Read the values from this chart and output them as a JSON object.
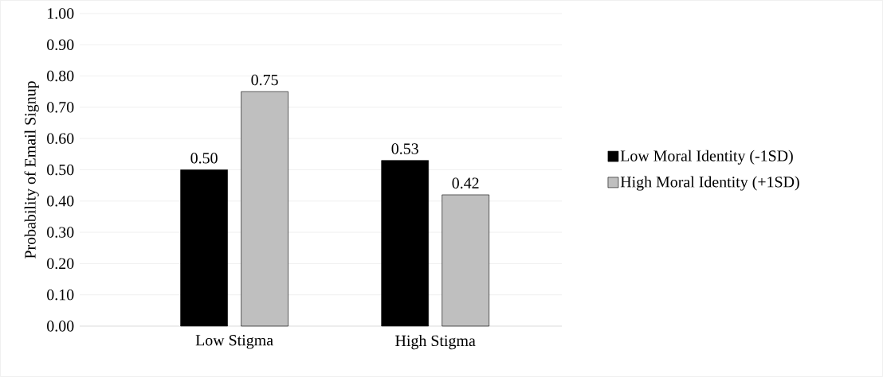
{
  "chart_data": {
    "type": "bar",
    "ylabel": "Probability of Email Signup",
    "categories": [
      "Low Stigma",
      "High Stigma"
    ],
    "series": [
      {
        "name": "Low Moral Identity (-1SD)",
        "color": "#000000",
        "values": [
          0.5,
          0.53
        ],
        "value_labels": [
          "0.50",
          "0.53"
        ]
      },
      {
        "name": "High Moral Identity (+1SD)",
        "color": "#bfbfbf",
        "values": [
          0.75,
          0.42
        ],
        "value_labels": [
          "0.75",
          "0.42"
        ]
      }
    ],
    "ylim": [
      0,
      1
    ],
    "yticks": [
      {
        "value": 0,
        "label": "0.00"
      },
      {
        "value": 0.1,
        "label": "0.10"
      },
      {
        "value": 0.2,
        "label": "0.20"
      },
      {
        "value": 0.3,
        "label": "0.30"
      },
      {
        "value": 0.4,
        "label": "0.40"
      },
      {
        "value": 0.5,
        "label": "0.50"
      },
      {
        "value": 0.6,
        "label": "0.60"
      },
      {
        "value": 0.7,
        "label": "0.70"
      },
      {
        "value": 0.8,
        "label": "0.80"
      },
      {
        "value": 0.9,
        "label": "0.90"
      },
      {
        "value": 1,
        "label": "1.00"
      }
    ],
    "grid": "y",
    "legend": "right"
  }
}
